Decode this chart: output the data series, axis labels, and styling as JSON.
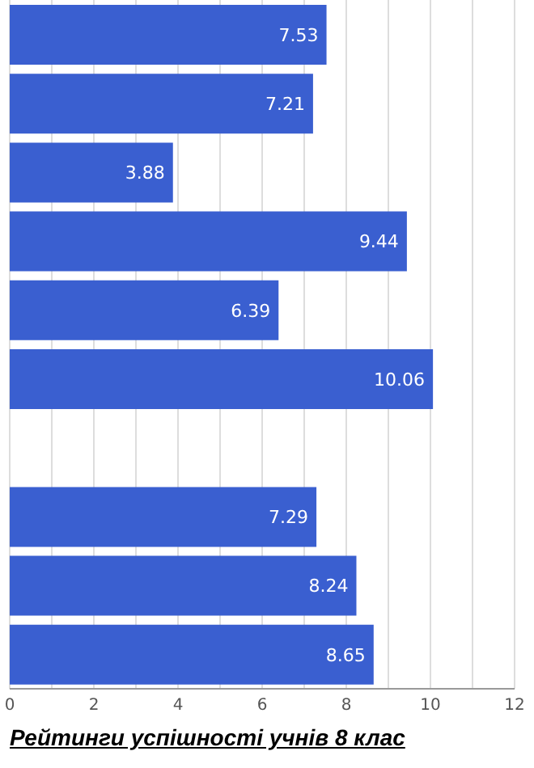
{
  "chart_data": {
    "type": "bar",
    "orientation": "horizontal",
    "title": "Рейтинги успішності учнів 8 клас",
    "categories": [
      null,
      null,
      null,
      null,
      null,
      null,
      null,
      null,
      null,
      null
    ],
    "values": [
      7.53,
      7.21,
      3.88,
      9.44,
      6.39,
      10.06,
      null,
      7.29,
      8.24,
      8.65
    ],
    "color": "#3a5fd0",
    "data_labels": true,
    "grid": "x",
    "tick_labels": "x",
    "xlim": [
      0,
      12
    ],
    "xticks": [
      0,
      {
        "value": 1,
        "label": null
      },
      2,
      {
        "value": 3,
        "label": null
      },
      4,
      {
        "value": 5,
        "label": null
      },
      6,
      {
        "value": 7,
        "label": null
      },
      8,
      {
        "value": 9,
        "label": null
      },
      10,
      {
        "value": 11,
        "label": null
      },
      12
    ]
  }
}
